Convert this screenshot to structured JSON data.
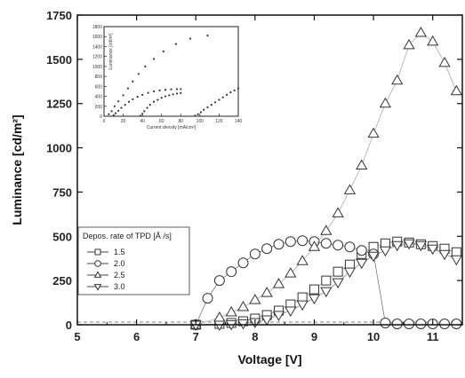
{
  "chart_data": [
    {
      "type": "scatter",
      "title": "",
      "xlabel": "Voltage [V]",
      "ylabel": "Luminance [cd/m²]",
      "xlim": [
        5,
        11.5
      ],
      "ylim": [
        0,
        1750
      ],
      "x_ticks": [
        "5",
        "6",
        "7",
        "8",
        "9",
        "10",
        "11"
      ],
      "y_ticks": [
        "0",
        "250",
        "500",
        "750",
        "1000",
        "1250",
        "1500",
        "1750"
      ],
      "legend": {
        "title": "Depos. rate of TPD [Å /s]",
        "placement": "bottom-left",
        "entries": [
          "1.5",
          "2.0",
          "2.5",
          "3.0"
        ]
      },
      "series": [
        {
          "name": "1.5",
          "marker": "square",
          "x": [
            5.0,
            5.5,
            6.0,
            6.5,
            7.0,
            7.4,
            7.6,
            7.8,
            8.0,
            8.2,
            8.4,
            8.6,
            8.8,
            9.0,
            9.2,
            9.4,
            9.6,
            9.8,
            10.0,
            10.2,
            10.4,
            10.6,
            10.8,
            11.0,
            11.2,
            11.4
          ],
          "y": [
            0,
            0,
            0,
            0,
            0,
            5,
            10,
            20,
            35,
            55,
            80,
            115,
            155,
            200,
            250,
            300,
            340,
            400,
            440,
            460,
            470,
            465,
            455,
            445,
            430,
            410
          ]
        },
        {
          "name": "2.0",
          "marker": "circle",
          "x": [
            5.0,
            5.5,
            6.0,
            6.5,
            7.0,
            7.2,
            7.4,
            7.6,
            7.8,
            8.0,
            8.2,
            8.4,
            8.6,
            8.8,
            9.0,
            9.2,
            9.4,
            9.6,
            9.8,
            10.0,
            10.2,
            10.4,
            10.6,
            10.8,
            11.0,
            11.2,
            11.4
          ],
          "y": [
            0,
            0,
            0,
            0,
            0,
            150,
            250,
            300,
            350,
            400,
            430,
            455,
            470,
            475,
            470,
            460,
            450,
            440,
            420,
            400,
            10,
            5,
            5,
            5,
            5,
            5,
            5
          ]
        },
        {
          "name": "2.5",
          "marker": "triangle-up",
          "x": [
            5.0,
            5.5,
            6.0,
            6.5,
            7.0,
            7.4,
            7.6,
            7.8,
            8.0,
            8.2,
            8.4,
            8.6,
            8.8,
            9.0,
            9.2,
            9.4,
            9.6,
            9.8,
            10.0,
            10.2,
            10.4,
            10.6,
            10.8,
            11.0,
            11.2,
            11.4
          ],
          "y": [
            0,
            0,
            0,
            0,
            0,
            40,
            70,
            100,
            140,
            180,
            230,
            290,
            360,
            440,
            530,
            630,
            760,
            900,
            1080,
            1250,
            1380,
            1580,
            1650,
            1600,
            1480,
            1320
          ]
        },
        {
          "name": "3.0",
          "marker": "triangle-down",
          "x": [
            5.0,
            5.5,
            6.0,
            6.5,
            7.0,
            7.4,
            7.6,
            7.8,
            8.0,
            8.2,
            8.4,
            8.6,
            8.8,
            9.0,
            9.2,
            9.4,
            9.6,
            9.8,
            10.0,
            10.2,
            10.4,
            10.6,
            10.8,
            11.0,
            11.2,
            11.4
          ],
          "y": [
            0,
            0,
            0,
            0,
            0,
            0,
            3,
            8,
            15,
            30,
            55,
            80,
            115,
            150,
            190,
            240,
            300,
            350,
            390,
            420,
            450,
            460,
            450,
            430,
            400,
            370
          ]
        }
      ]
    },
    {
      "type": "scatter",
      "title": "",
      "xlabel": "Current density [mA/cm²]",
      "ylabel": "Luminance [cd/m²]",
      "xlim": [
        0,
        140
      ],
      "ylim": [
        0,
        1800
      ],
      "x_ticks": [
        "0",
        "20",
        "40",
        "60",
        "80",
        "100",
        "120",
        "140"
      ],
      "y_ticks": [
        "0",
        "200",
        "400",
        "600",
        "800",
        "1000",
        "1200",
        "1400",
        "1600",
        "1800"
      ],
      "series": [
        {
          "x": [
            5,
            8,
            11,
            15,
            20,
            25,
            30,
            36,
            43,
            52,
            62,
            75,
            90,
            108
          ],
          "y": [
            40,
            100,
            200,
            300,
            420,
            560,
            700,
            850,
            1000,
            1150,
            1300,
            1450,
            1560,
            1620
          ]
        },
        {
          "x": [
            10,
            12,
            15,
            18,
            22,
            26,
            30,
            35,
            40,
            46,
            52,
            58,
            64,
            70,
            76,
            80
          ],
          "y": [
            20,
            60,
            110,
            170,
            230,
            290,
            340,
            390,
            430,
            470,
            500,
            520,
            530,
            540,
            545,
            545
          ]
        },
        {
          "x": [
            38,
            40,
            42,
            45,
            48,
            52,
            56,
            60,
            64,
            68,
            72,
            76,
            80
          ],
          "y": [
            10,
            50,
            100,
            170,
            230,
            290,
            330,
            370,
            400,
            420,
            440,
            455,
            465
          ]
        },
        {
          "x": [
            95,
            98,
            101,
            104,
            108,
            112,
            116,
            120,
            124,
            128,
            132,
            136,
            140
          ],
          "y": [
            10,
            40,
            80,
            130,
            180,
            230,
            280,
            330,
            380,
            430,
            480,
            520,
            560
          ]
        }
      ]
    }
  ]
}
